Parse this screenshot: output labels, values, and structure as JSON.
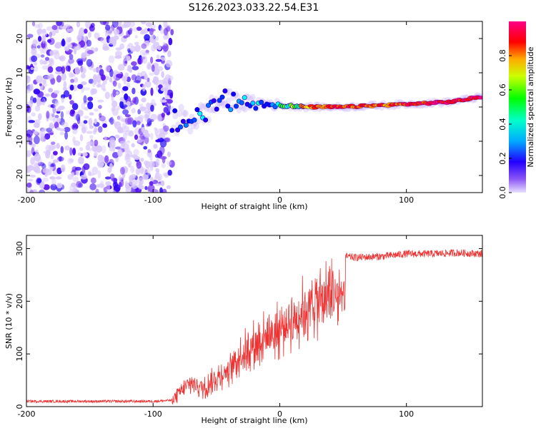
{
  "title": "S126.2023.033.22.54.E31",
  "chart_data": [
    {
      "type": "heatmap",
      "xlabel": "Height of straight line (km)",
      "ylabel": "Frequency (Hz)",
      "xlim": [
        -200,
        160
      ],
      "ylim": [
        -25,
        25
      ],
      "x_ticks": [
        -200,
        -100,
        0,
        100
      ],
      "y_ticks": [
        20,
        10,
        0,
        -10,
        -20
      ],
      "colorbar": {
        "label": "Normalized spectral amplitude",
        "range": [
          0.0,
          1.0
        ],
        "ticks": [
          "0.0",
          "0.2",
          "0.4",
          "0.6",
          "0.8"
        ],
        "colormap": [
          "#e8e0ff",
          "#5000f0",
          "#0000ff",
          "#00ffff",
          "#00ff00",
          "#ffff00",
          "#ff0000",
          "#ff00a0"
        ]
      },
      "noise_region": {
        "x": [
          -200,
          -85
        ],
        "freq": [
          -25,
          25
        ],
        "amplitude": [
          0.0,
          0.25
        ]
      },
      "signal_track": [
        {
          "x": -85,
          "freq": -4,
          "amplitude": 0.25
        },
        {
          "x": -70,
          "freq": -4,
          "amplitude": 0.35
        },
        {
          "x": -60,
          "freq": -2,
          "amplitude": 0.4
        },
        {
          "x": -50,
          "freq": 1,
          "amplitude": 0.35
        },
        {
          "x": -40,
          "freq": 2,
          "amplitude": 0.35
        },
        {
          "x": -25,
          "freq": 1,
          "amplitude": 0.4
        },
        {
          "x": -10,
          "freq": 1,
          "amplitude": 0.45
        },
        {
          "x": 0,
          "freq": 0.5,
          "amplitude": 0.55
        },
        {
          "x": 20,
          "freq": 0,
          "amplitude": 0.8
        },
        {
          "x": 50,
          "freq": 0,
          "amplitude": 0.9
        },
        {
          "x": 80,
          "freq": 0.5,
          "amplitude": 0.85
        },
        {
          "x": 110,
          "freq": 1,
          "amplitude": 0.9
        },
        {
          "x": 135,
          "freq": 1.5,
          "amplitude": 0.95
        },
        {
          "x": 160,
          "freq": 3,
          "amplitude": 0.95
        }
      ]
    },
    {
      "type": "line",
      "xlabel": "Height of straight line (km)",
      "ylabel": "SNR (10 * v/v)",
      "xlim": [
        -200,
        160
      ],
      "ylim": [
        0,
        325
      ],
      "x_ticks": [
        -200,
        -100,
        0,
        100
      ],
      "y_ticks": [
        0,
        100,
        200,
        300
      ],
      "color": "#ee3333",
      "series": [
        {
          "x": [
            -200,
            -180,
            -160,
            -140,
            -120,
            -100,
            -85,
            -80,
            -70,
            -60,
            -50,
            -40,
            -30,
            -20,
            -10,
            0,
            10,
            20,
            30,
            40,
            48,
            50,
            52,
            60,
            80,
            100,
            120,
            140,
            160
          ],
          "values": [
            10,
            10,
            10,
            10,
            10,
            10,
            12,
            25,
            45,
            35,
            55,
            70,
            100,
            120,
            135,
            145,
            165,
            185,
            200,
            210,
            210,
            190,
            285,
            283,
            285,
            290,
            290,
            292,
            290
          ]
        }
      ]
    }
  ]
}
